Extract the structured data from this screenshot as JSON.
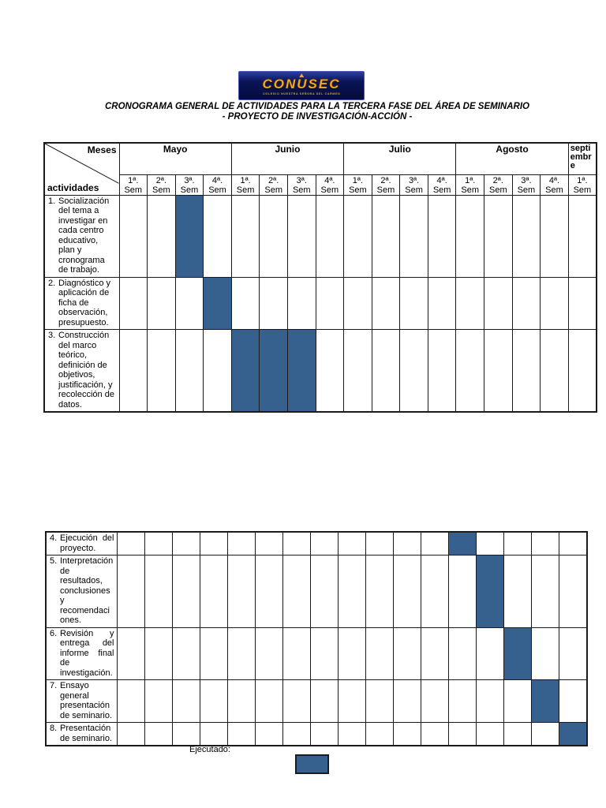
{
  "header": {
    "logo": {
      "text": "CONUSEC",
      "caption": "COLEGIO NUESTRA SEÑORA DEL CARMEN"
    },
    "title_line1": "CRONOGRAMA GENERAL DE ACTIVIDADES PARA LA TERCERA FASE DEL ÁREA DE SEMINARIO",
    "title_line2": "- PROYECTO DE INVESTIGACIÓN-ACCIÓN -"
  },
  "legend": {
    "label": "Ejecutado:"
  },
  "colors": {
    "bar_fill": "#36618F",
    "logo_background": "#0A1456",
    "logo_gold": "#F4A61D",
    "table_border": "#1B1B1B"
  },
  "chart_data": {
    "type": "table",
    "subtype": "gantt-schedule",
    "title": "CRONOGRAMA GENERAL DE ACTIVIDADES PARA LA TERCERA FASE DEL ÁREA DE SEMINARIO - PROYECTO DE INVESTIGACIÓN-ACCIÓN -",
    "corner": {
      "top_label": "Meses",
      "bottom_label": "actividades"
    },
    "months": [
      {
        "label": "Mayo",
        "weeks": 4
      },
      {
        "label": "Junio",
        "weeks": 4
      },
      {
        "label": "Julio",
        "weeks": 4
      },
      {
        "label": "Agosto",
        "weeks": 4
      },
      {
        "label": "septiembre",
        "weeks": 1
      }
    ],
    "week_ordinals": [
      "1ª.",
      "2ª.",
      "3ª.",
      "4ª."
    ],
    "week_word": "Sem",
    "bar_color": "#36618F",
    "sections": [
      {
        "name": "rows-1-3",
        "has_header": true,
        "activities": [
          {
            "num": "1.",
            "text": "Socialización del tema a investigar en cada centro educativo, plan y cronograma de trabajo.",
            "filled_weeks": [
              2
            ],
            "filled_label": "Mayo 3ª Sem",
            "justify": false
          },
          {
            "num": "2.",
            "text": "Diagnóstico y aplicación de ficha de observación, presupuesto.",
            "filled_weeks": [
              3
            ],
            "filled_label": "Mayo 4ª Sem",
            "justify": false
          },
          {
            "num": "3.",
            "text": "Construcción del marco teórico, definición de objetivos, justificación, y recolección de datos.",
            "filled_weeks": [
              4,
              5,
              6
            ],
            "filled_label": "Junio 1ª–3ª Sem",
            "justify": false
          }
        ]
      },
      {
        "name": "rows-4-8",
        "has_header": false,
        "activities": [
          {
            "num": "4.",
            "text": "Ejecución del proyecto.",
            "filled_weeks": [
              12
            ],
            "filled_label": "Agosto 1ª Sem",
            "justify": true
          },
          {
            "num": "5.",
            "text": "Interpretación de resultados, conclusiones y recomendaciones.",
            "filled_weeks": [
              13
            ],
            "filled_label": "Agosto 2ª Sem",
            "justify": false
          },
          {
            "num": "6.",
            "text": "Revisión y entrega del informe final de investigación.",
            "filled_weeks": [
              14
            ],
            "filled_label": "Agosto 3ª Sem",
            "justify": true
          },
          {
            "num": "7.",
            "text": "Ensayo general presentación de seminario.",
            "filled_weeks": [
              15
            ],
            "filled_label": "Agosto 4ª Sem",
            "justify": false
          },
          {
            "num": "8.",
            "text": "Presentación de seminario.",
            "filled_weeks": [
              16
            ],
            "filled_label": "Septiembre 1ª Sem",
            "justify": false
          }
        ]
      }
    ]
  }
}
